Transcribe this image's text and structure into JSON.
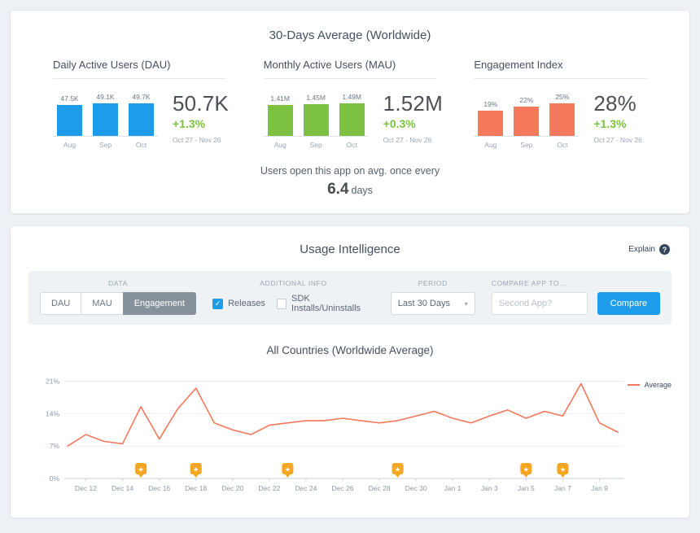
{
  "top_card": {
    "title": "30-Days Average (Worldwide)",
    "footnote_line1": "Users open this app on avg. once every",
    "footnote_value": "6.4",
    "footnote_unit": "days"
  },
  "usage": {
    "title": "Usage Intelligence",
    "explain_label": "Explain",
    "toolbar": {
      "data_label": "DATA",
      "data_buttons": [
        {
          "label": "DAU",
          "selected": false
        },
        {
          "label": "MAU",
          "selected": false
        },
        {
          "label": "Engagement",
          "selected": true
        }
      ],
      "additional_label": "ADDITIONAL INFO",
      "checkboxes": [
        {
          "label": "Releases",
          "checked": true
        },
        {
          "label": "SDK Installs/Uninstalls",
          "checked": false
        }
      ],
      "period_label": "PERIOD",
      "period_value": "Last 30 Days",
      "compare_label": "COMPARE APP TO...",
      "compare_placeholder": "Second App?",
      "compare_button_label": "Compare"
    }
  },
  "colors": {
    "dau_bar": "#1e9cea",
    "mau_bar": "#7cc142",
    "engagement_bar": "#f4785c",
    "delta_green": "#7cc142",
    "line": "#f4785c",
    "release_marker": "#f5a623",
    "compare_button": "#1e9cea"
  },
  "chart_data": [
    {
      "type": "bar",
      "title": "Daily Active Users (DAU)",
      "categories": [
        "Aug",
        "Sep",
        "Oct"
      ],
      "values": [
        47.5,
        49.1,
        49.7
      ],
      "value_labels": [
        "47.5K",
        "49.1K",
        "49.7K"
      ],
      "bar_color": "#1e9cea",
      "ylim": [
        0,
        52
      ],
      "summary_value": "50.7K",
      "summary_delta": "+1.3%",
      "summary_period": "Oct 27 - Nov 26"
    },
    {
      "type": "bar",
      "title": "Monthly Active Users (MAU)",
      "categories": [
        "Aug",
        "Sep",
        "Oct"
      ],
      "values": [
        1.41,
        1.45,
        1.49
      ],
      "value_labels": [
        "1.41M",
        "1.45M",
        "1.49M"
      ],
      "bar_color": "#7cc142",
      "ylim": [
        0,
        1.55
      ],
      "summary_value": "1.52M",
      "summary_delta": "+0.3%",
      "summary_period": "Oct 27 - Nov 26"
    },
    {
      "type": "bar",
      "title": "Engagement Index",
      "categories": [
        "Aug",
        "Sep",
        "Oct"
      ],
      "values": [
        19,
        22,
        25
      ],
      "value_labels": [
        "19%",
        "22%",
        "25%"
      ],
      "bar_color": "#f4785c",
      "ylim": [
        0,
        26
      ],
      "summary_value": "28%",
      "summary_delta": "+1.3%",
      "summary_period": "Oct 27 - Nov 26"
    },
    {
      "type": "line",
      "title": "All Countries (Worldwide Average)",
      "x": [
        "Dec 11",
        "Dec 12",
        "Dec 13",
        "Dec 14",
        "Dec 15",
        "Dec 16",
        "Dec 17",
        "Dec 18",
        "Dec 19",
        "Dec 20",
        "Dec 21",
        "Dec 22",
        "Dec 23",
        "Dec 24",
        "Dec 25",
        "Dec 26",
        "Dec 27",
        "Dec 28",
        "Dec 29",
        "Dec 30",
        "Dec 31",
        "Jan 1",
        "Jan 2",
        "Jan 3",
        "Jan 4",
        "Jan 5",
        "Jan 6",
        "Jan 7",
        "Jan 8",
        "Jan 9",
        "Jan 10"
      ],
      "series": [
        {
          "name": "Average",
          "color": "#f4785c",
          "values": [
            7,
            9.5,
            8,
            7.5,
            15.5,
            8.5,
            15,
            19.5,
            12,
            10.5,
            9.5,
            11.5,
            12,
            12.5,
            12.5,
            13,
            12.5,
            12,
            12.5,
            13.5,
            14.5,
            13,
            12,
            13.5,
            14.8,
            13,
            14.5,
            13.5,
            20.5,
            12,
            10
          ]
        }
      ],
      "ylim": [
        0,
        22.5
      ],
      "yticks": [
        {
          "v": 0,
          "label": "0%"
        },
        {
          "v": 7,
          "label": "7%"
        },
        {
          "v": 14,
          "label": "14%"
        },
        {
          "v": 21,
          "label": "21%"
        }
      ],
      "xticks": [
        "Dec 12",
        "Dec 14",
        "Dec 16",
        "Dec 18",
        "Dec 20",
        "Dec 22",
        "Dec 24",
        "Dec 26",
        "Dec 28",
        "Dec 30",
        "Jan 1",
        "Jan 3",
        "Jan 5",
        "Jan 7",
        "Jan 9"
      ],
      "release_markers": [
        "Dec 15",
        "Dec 18",
        "Dec 23",
        "Dec 29",
        "Jan 5",
        "Jan 7"
      ],
      "legend": [
        "Average"
      ],
      "legend_position": "right"
    }
  ]
}
